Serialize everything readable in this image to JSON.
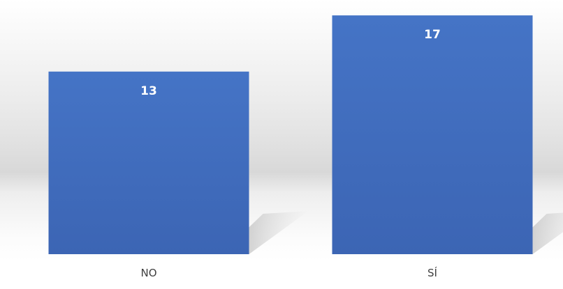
{
  "chart_data": {
    "type": "bar",
    "categories": [
      "NO",
      "SÍ"
    ],
    "values": [
      13,
      17
    ],
    "title": "",
    "xlabel": "",
    "ylabel": "",
    "ylim": [
      0,
      17.6
    ],
    "grid": false,
    "legend": "none",
    "colors": {
      "bar": "#4472c4",
      "bar_dark": "#3a63b0",
      "value_label": "#ffffff",
      "category_label": "#404040"
    }
  }
}
